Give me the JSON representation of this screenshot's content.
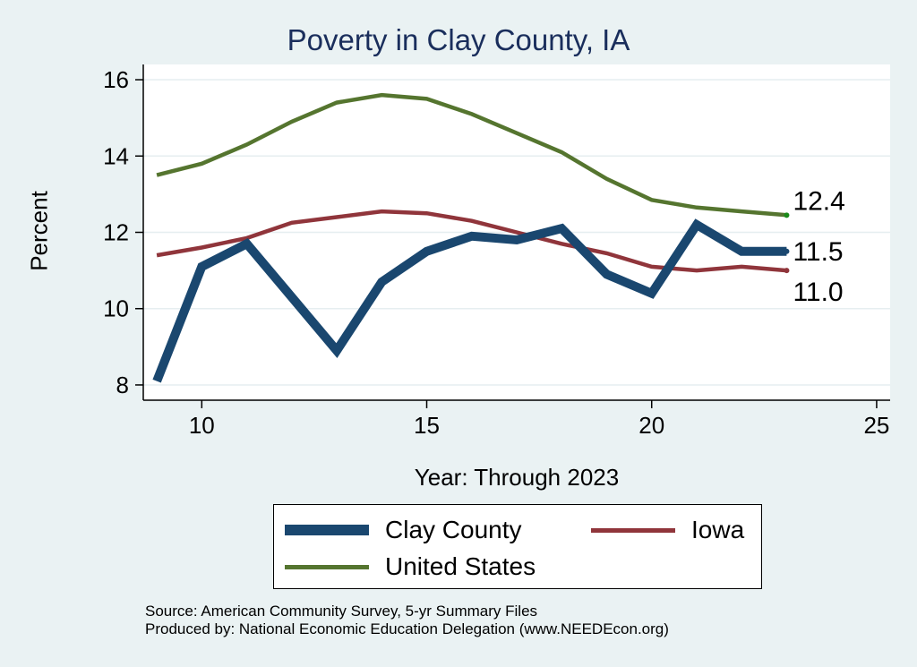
{
  "chart_data": {
    "type": "line",
    "title": "Poverty in Clay County, IA",
    "xlabel": "Year: Through 2023",
    "ylabel": "Percent",
    "xlim": [
      8.7,
      25.3
    ],
    "ylim": [
      7.6,
      16.4
    ],
    "x_ticks": [
      10,
      15,
      20,
      25
    ],
    "y_ticks": [
      8,
      10,
      12,
      14,
      16
    ],
    "grid": true,
    "legend_position": "bottom",
    "series": [
      {
        "name": "Clay County",
        "color": "#1a476f",
        "x": [
          9,
          10,
          11,
          12,
          13,
          14,
          15,
          16,
          17,
          18,
          19,
          20,
          21,
          22,
          23
        ],
        "values": [
          8.1,
          11.1,
          11.7,
          10.3,
          8.9,
          10.7,
          11.5,
          11.9,
          11.8,
          12.1,
          10.9,
          10.4,
          12.2,
          11.5,
          11.5
        ],
        "end_label": "11.5"
      },
      {
        "name": "Iowa",
        "color": "#90353b",
        "x": [
          9,
          10,
          11,
          12,
          13,
          14,
          15,
          16,
          17,
          18,
          19,
          20,
          21,
          22,
          23
        ],
        "values": [
          11.4,
          11.6,
          11.85,
          12.25,
          12.4,
          12.55,
          12.5,
          12.3,
          12.0,
          11.7,
          11.45,
          11.1,
          11.0,
          11.1,
          11.0
        ],
        "end_label": "11.0"
      },
      {
        "name": "United States",
        "color": "#55752f",
        "x": [
          9,
          10,
          11,
          12,
          13,
          14,
          15,
          16,
          17,
          18,
          19,
          20,
          21,
          22,
          23
        ],
        "values": [
          13.5,
          13.8,
          14.3,
          14.9,
          15.4,
          15.6,
          15.5,
          15.1,
          14.6,
          14.1,
          13.4,
          12.85,
          12.65,
          12.55,
          12.45
        ],
        "end_label": "12.4"
      }
    ],
    "source_lines": [
      "Source: American Community Survey, 5-yr Summary Files",
      "Produced by: National Economic Education Delegation (www.NEEDEcon.org)"
    ]
  }
}
